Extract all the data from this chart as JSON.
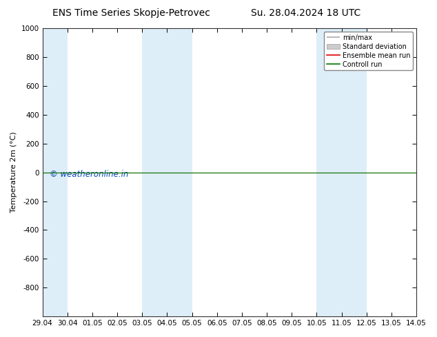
{
  "title_left": "ENS Time Series Skopje-Petrovec",
  "title_right": "Su. 28.04.2024 18 UTC",
  "ylabel": "Temperature 2m (°C)",
  "ylim_top": -1000,
  "ylim_bottom": 1000,
  "yticks": [
    -800,
    -600,
    -400,
    -200,
    0,
    200,
    400,
    600,
    800,
    1000
  ],
  "xtick_labels": [
    "29.04",
    "30.04",
    "01.05",
    "02.05",
    "03.05",
    "04.05",
    "05.05",
    "06.05",
    "07.05",
    "08.05",
    "09.05",
    "10.05",
    "11.05",
    "12.05",
    "13.05",
    "14.05"
  ],
  "xtick_positions": [
    0,
    1,
    2,
    3,
    4,
    5,
    6,
    7,
    8,
    9,
    10,
    11,
    12,
    13,
    14,
    15
  ],
  "shaded_bands": [
    {
      "x_start": 0,
      "x_end": 1,
      "color": "#ddeef8"
    },
    {
      "x_start": 4,
      "x_end": 5,
      "color": "#ddeef8"
    },
    {
      "x_start": 5,
      "x_end": 6,
      "color": "#ddeef8"
    },
    {
      "x_start": 11,
      "x_end": 12,
      "color": "#ddeef8"
    },
    {
      "x_start": 12,
      "x_end": 13,
      "color": "#ddeef8"
    }
  ],
  "green_line_y": 0,
  "red_line_y": 0,
  "green_line_color": "#007700",
  "red_line_color": "#dd0000",
  "watermark": "© weatheronline.in",
  "watermark_color": "#0044bb",
  "background_color": "#ffffff",
  "plot_bg_color": "#ffffff",
  "legend_items": [
    "min/max",
    "Standard deviation",
    "Ensemble mean run",
    "Controll run"
  ],
  "title_fontsize": 10,
  "axis_fontsize": 8,
  "tick_fontsize": 7.5
}
